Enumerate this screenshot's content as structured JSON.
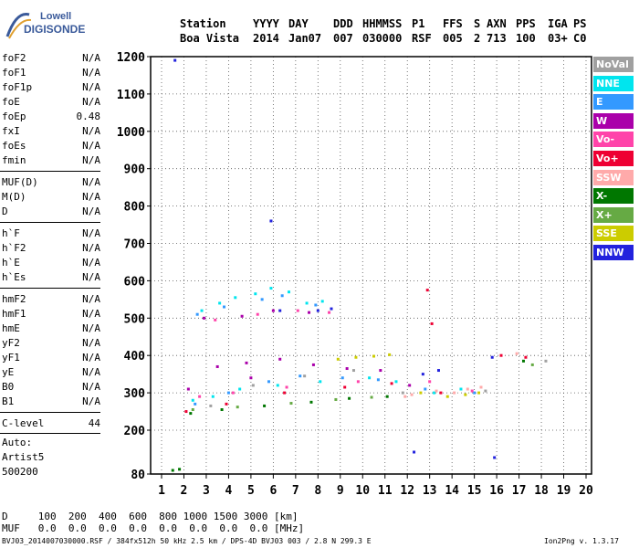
{
  "logo": {
    "line1": "Lowell",
    "line2": "DIGISONDE"
  },
  "header": {
    "labels": [
      "Station",
      "YYYY",
      "DAY",
      "DDD",
      "HHMMSS",
      "P1",
      "FFS",
      "S",
      "AXN",
      "PPS",
      "IGA",
      "PS"
    ],
    "values": [
      "Boa Vista",
      "2014",
      "Jan07",
      "007",
      "030000",
      "RSF",
      "005",
      "2",
      "713",
      "100",
      "03+",
      "C0"
    ]
  },
  "params_group1": [
    {
      "k": "foF2",
      "v": "N/A"
    },
    {
      "k": "foF1",
      "v": "N/A"
    },
    {
      "k": "foF1p",
      "v": "N/A"
    },
    {
      "k": "foE",
      "v": "N/A"
    },
    {
      "k": "foEp",
      "v": "0.48"
    },
    {
      "k": "fxI",
      "v": "N/A"
    },
    {
      "k": "foEs",
      "v": "N/A"
    },
    {
      "k": "fmin",
      "v": "N/A"
    }
  ],
  "params_group2": [
    {
      "k": "MUF(D)",
      "v": "N/A"
    },
    {
      "k": "M(D)",
      "v": "N/A"
    },
    {
      "k": "D",
      "v": "N/A"
    }
  ],
  "params_group3": [
    {
      "k": "h`F",
      "v": "N/A"
    },
    {
      "k": "h`F2",
      "v": "N/A"
    },
    {
      "k": "h`E",
      "v": "N/A"
    },
    {
      "k": "h`Es",
      "v": "N/A"
    }
  ],
  "params_group4": [
    {
      "k": "hmF2",
      "v": "N/A"
    },
    {
      "k": "hmF1",
      "v": "N/A"
    },
    {
      "k": "hmE",
      "v": "N/A"
    },
    {
      "k": "yF2",
      "v": "N/A"
    },
    {
      "k": "yF1",
      "v": "N/A"
    },
    {
      "k": "yE",
      "v": "N/A"
    },
    {
      "k": "B0",
      "v": "N/A"
    },
    {
      "k": "B1",
      "v": "N/A"
    }
  ],
  "clevel": {
    "k": "C-level",
    "v": "44"
  },
  "auto": {
    "l1": "Auto:",
    "l2": "Artist5",
    "l3": "500200"
  },
  "legend": [
    {
      "label": "NoVal",
      "color": "#a0a0a0"
    },
    {
      "label": "NNE",
      "color": "#00e5ee"
    },
    {
      "label": "E",
      "color": "#3399ff"
    },
    {
      "label": "W",
      "color": "#aa00aa"
    },
    {
      "label": "Vo-",
      "color": "#ff44aa"
    },
    {
      "label": "Vo+",
      "color": "#ee0033"
    },
    {
      "label": "SSW",
      "color": "#ffaaaa"
    },
    {
      "label": "X-",
      "color": "#007700"
    },
    {
      "label": "X+",
      "color": "#66aa44"
    },
    {
      "label": "SSE",
      "color": "#cccc00"
    },
    {
      "label": "NNW",
      "color": "#2222dd"
    }
  ],
  "bottom": {
    "d_line": "D     100  200  400  600  800 1000 1500 3000 [km]",
    "muf_line": "MUF   0.0  0.0  0.0  0.0  0.0  0.0  0.0  0.0 [MHz]"
  },
  "footer": {
    "left": "BVJ03_2014007030000.RSF / 384fx512h 50 kHz 2.5 km / DPS-4D BVJ03 003 / 2.8 N 299.3 E",
    "right": "Ion2Png v. 1.3.17"
  },
  "chart_data": {
    "type": "scatter",
    "xlim": [
      1,
      20
    ],
    "ylim": [
      80,
      1200
    ],
    "x_ticks": [
      1,
      2,
      3,
      4,
      5,
      6,
      7,
      8,
      9,
      10,
      11,
      12,
      13,
      14,
      15,
      16,
      17,
      18,
      19,
      20
    ],
    "y_ticks": [
      80,
      200,
      300,
      400,
      500,
      600,
      700,
      800,
      900,
      1000,
      1100,
      1200
    ],
    "xlabel": "",
    "ylabel": "",
    "grid": true,
    "series": [
      {
        "name": "NoVal",
        "points": [
          [
            3.2,
            265
          ],
          [
            5.1,
            320
          ],
          [
            7.4,
            345
          ],
          [
            9.6,
            360
          ],
          [
            11.8,
            300
          ],
          [
            15.5,
            305
          ],
          [
            18.2,
            385
          ]
        ]
      },
      {
        "name": "NNE",
        "points": [
          [
            2.8,
            520
          ],
          [
            3.6,
            540
          ],
          [
            4.3,
            555
          ],
          [
            5.2,
            565
          ],
          [
            5.9,
            580
          ],
          [
            6.7,
            570
          ],
          [
            7.5,
            540
          ],
          [
            8.2,
            545
          ],
          [
            2.4,
            280
          ],
          [
            3.3,
            290
          ],
          [
            4.5,
            310
          ],
          [
            6.2,
            320
          ],
          [
            8.1,
            330
          ],
          [
            10.3,
            340
          ],
          [
            11.5,
            330
          ],
          [
            13.2,
            300
          ],
          [
            14.4,
            310
          ]
        ]
      },
      {
        "name": "E",
        "points": [
          [
            2.6,
            510
          ],
          [
            3.8,
            530
          ],
          [
            5.5,
            550
          ],
          [
            6.4,
            560
          ],
          [
            7.9,
            535
          ],
          [
            2.5,
            270
          ],
          [
            4.0,
            300
          ],
          [
            5.8,
            330
          ],
          [
            7.2,
            345
          ],
          [
            9.1,
            340
          ],
          [
            10.7,
            335
          ],
          [
            12.8,
            310
          ],
          [
            15.0,
            300
          ]
        ]
      },
      {
        "name": "W",
        "points": [
          [
            2.9,
            500
          ],
          [
            4.6,
            505
          ],
          [
            6.0,
            520
          ],
          [
            7.6,
            515
          ],
          [
            3.5,
            370
          ],
          [
            4.8,
            380
          ],
          [
            6.3,
            390
          ],
          [
            7.8,
            375
          ],
          [
            9.3,
            365
          ],
          [
            10.8,
            360
          ],
          [
            12.1,
            320
          ],
          [
            2.2,
            310
          ],
          [
            5.0,
            340
          ]
        ]
      },
      {
        "name": "Vo-",
        "points": [
          [
            3.4,
            495
          ],
          [
            5.3,
            510
          ],
          [
            7.1,
            520
          ],
          [
            8.5,
            515
          ],
          [
            2.7,
            290
          ],
          [
            4.2,
            300
          ],
          [
            6.6,
            315
          ],
          [
            9.8,
            330
          ],
          [
            13.0,
            330
          ],
          [
            14.9,
            305
          ]
        ]
      },
      {
        "name": "Vo+",
        "points": [
          [
            2.1,
            250
          ],
          [
            3.9,
            270
          ],
          [
            6.5,
            300
          ],
          [
            9.2,
            315
          ],
          [
            11.3,
            325
          ],
          [
            13.5,
            300
          ],
          [
            16.2,
            400
          ],
          [
            17.3,
            395
          ],
          [
            12.9,
            575
          ],
          [
            13.1,
            485
          ]
        ]
      },
      {
        "name": "SSW",
        "points": [
          [
            12.2,
            295
          ],
          [
            13.3,
            305
          ],
          [
            14.1,
            300
          ],
          [
            14.7,
            310
          ],
          [
            15.3,
            315
          ],
          [
            11.9,
            290
          ],
          [
            16.9,
            405
          ]
        ]
      },
      {
        "name": "X-",
        "points": [
          [
            1.5,
            90
          ],
          [
            1.8,
            93
          ],
          [
            2.3,
            245
          ],
          [
            3.7,
            255
          ],
          [
            5.6,
            265
          ],
          [
            7.7,
            275
          ],
          [
            9.4,
            285
          ],
          [
            11.1,
            290
          ],
          [
            17.2,
            385
          ]
        ]
      },
      {
        "name": "X+",
        "points": [
          [
            2.4,
            255
          ],
          [
            4.4,
            262
          ],
          [
            6.8,
            272
          ],
          [
            8.8,
            282
          ],
          [
            10.4,
            288
          ],
          [
            17.6,
            375
          ]
        ]
      },
      {
        "name": "SSE",
        "points": [
          [
            8.9,
            390
          ],
          [
            9.7,
            395
          ],
          [
            10.5,
            398
          ],
          [
            11.2,
            402
          ],
          [
            13.8,
            290
          ],
          [
            14.6,
            295
          ],
          [
            15.2,
            300
          ],
          [
            12.6,
            300
          ]
        ]
      },
      {
        "name": "NNW",
        "points": [
          [
            1.6,
            1190
          ],
          [
            5.9,
            760
          ],
          [
            6.3,
            520
          ],
          [
            8.0,
            520
          ],
          [
            8.6,
            525
          ],
          [
            12.7,
            350
          ],
          [
            13.4,
            360
          ],
          [
            15.8,
            395
          ],
          [
            12.3,
            140
          ],
          [
            15.9,
            125
          ]
        ]
      }
    ]
  }
}
